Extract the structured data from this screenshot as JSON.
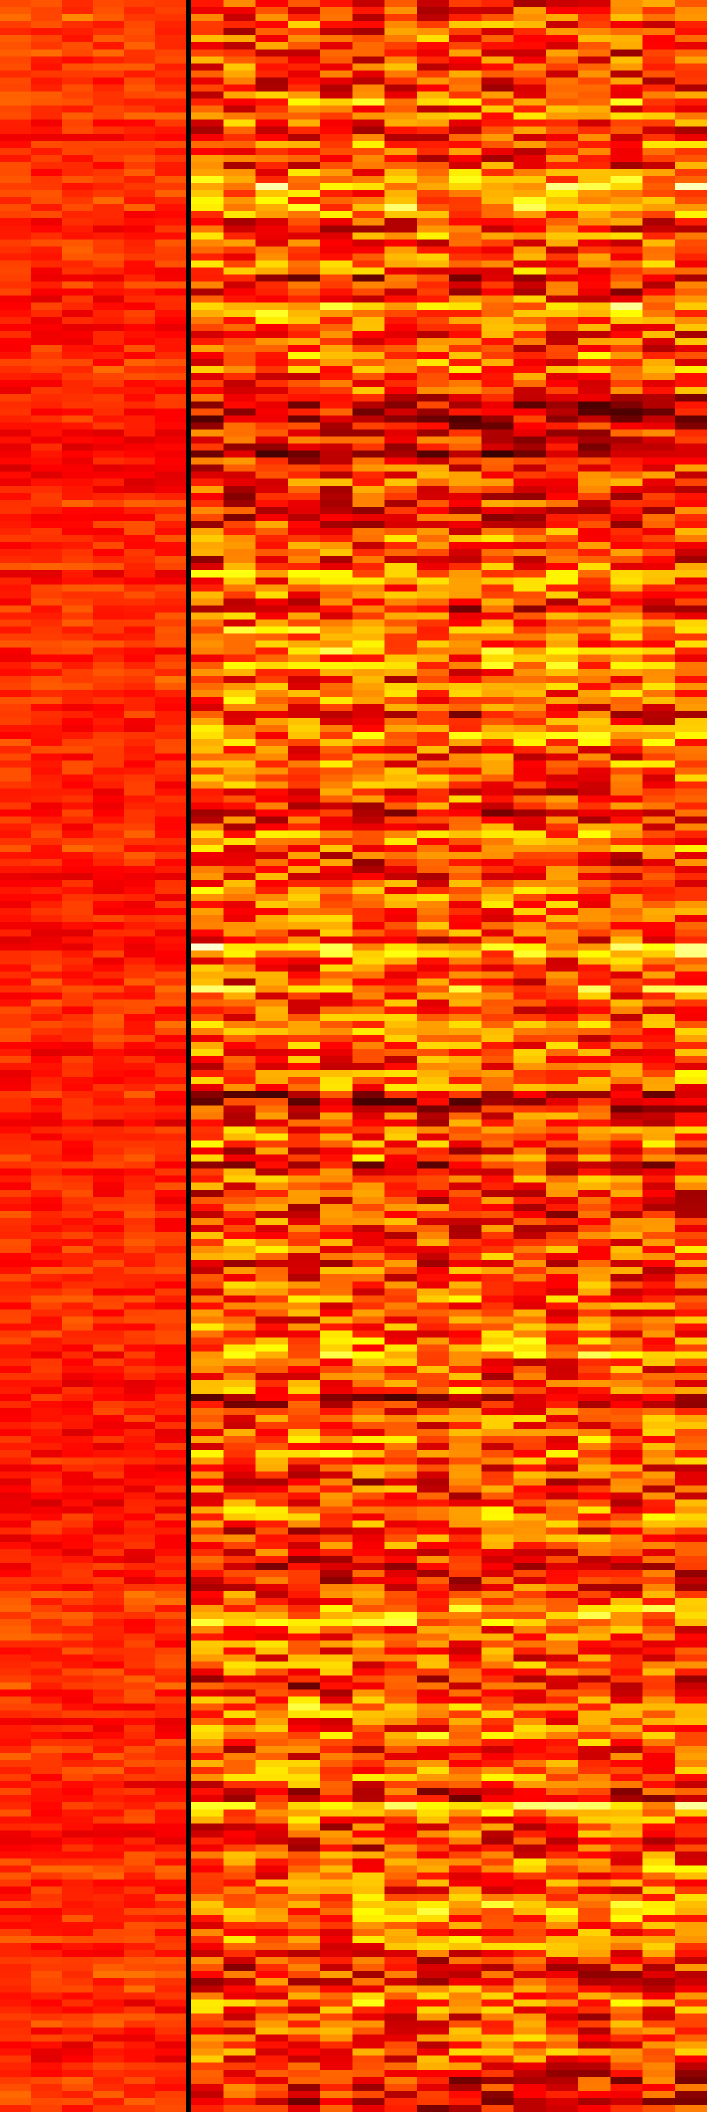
{
  "chart_data": {
    "type": "heatmap",
    "title": "",
    "xlabel": "",
    "ylabel": "",
    "colormap": "hot",
    "colormap_stops": [
      "#000000",
      "#8b0000",
      "#ff0000",
      "#ff8c00",
      "#ffff00",
      "#ffffff"
    ],
    "n_rows": 300,
    "panels": [
      {
        "name": "",
        "n_cols": 6,
        "value_range": [
          0.3,
          0.6
        ],
        "seed": 7
      },
      {
        "name": "",
        "n_cols": 16,
        "value_range": [
          0.0,
          1.0
        ],
        "seed": 42
      }
    ],
    "divider_color": "#000000",
    "grid": false,
    "legend": "none"
  }
}
